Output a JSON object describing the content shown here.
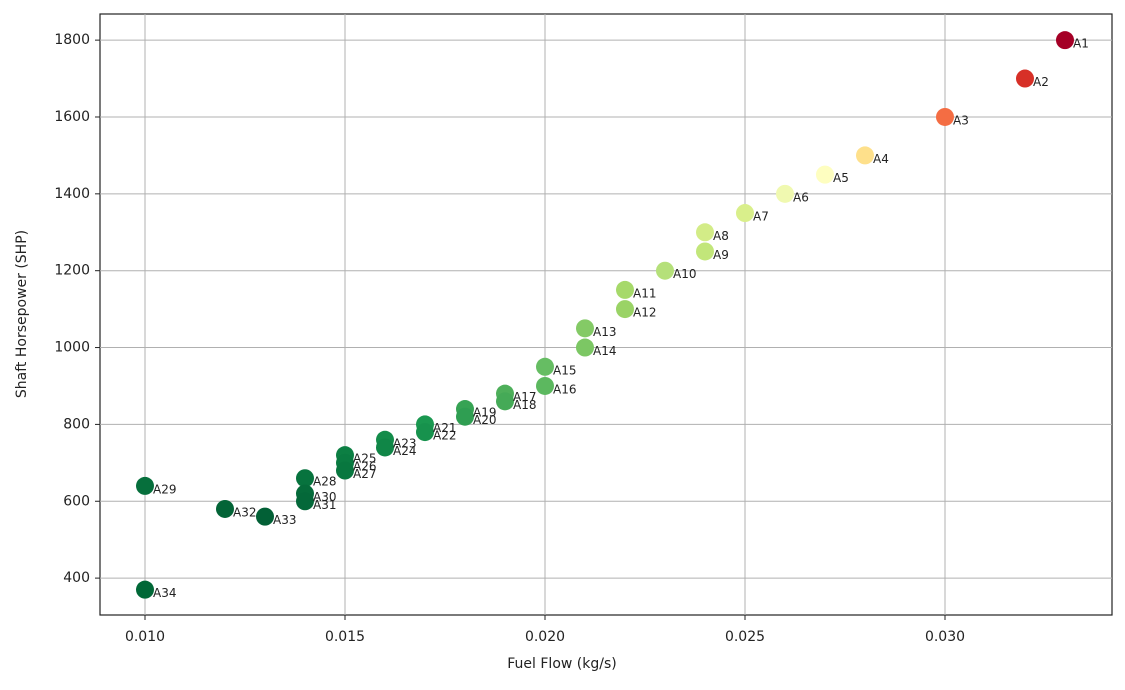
{
  "chart_data": {
    "type": "scatter",
    "xlabel": "Fuel Flow (kg/s)",
    "ylabel": "Shaft Horsepower (SHP)",
    "labels": [
      "A1",
      "A2",
      "A3",
      "A4",
      "A5",
      "A6",
      "A7",
      "A8",
      "A9",
      "A10",
      "A11",
      "A12",
      "A13",
      "A14",
      "A15",
      "A16",
      "A17",
      "A18",
      "A19",
      "A20",
      "A21",
      "A22",
      "A23",
      "A24",
      "A25",
      "A26",
      "A27",
      "A28",
      "A29",
      "A30",
      "A31",
      "A32",
      "A33",
      "A34"
    ],
    "x": [
      0.033,
      0.032,
      0.03,
      0.028,
      0.027,
      0.026,
      0.025,
      0.024,
      0.024,
      0.023,
      0.022,
      0.022,
      0.021,
      0.021,
      0.02,
      0.02,
      0.019,
      0.019,
      0.018,
      0.018,
      0.017,
      0.017,
      0.016,
      0.016,
      0.015,
      0.015,
      0.015,
      0.014,
      0.01,
      0.014,
      0.014,
      0.012,
      0.013,
      0.01
    ],
    "y": [
      1800,
      1700,
      1600,
      1500,
      1450,
      1400,
      1350,
      1300,
      1250,
      1200,
      1150,
      1100,
      1050,
      1000,
      950,
      900,
      880,
      860,
      840,
      820,
      800,
      780,
      760,
      740,
      720,
      700,
      680,
      660,
      640,
      620,
      600,
      580,
      560,
      370
    ],
    "colors": [
      "#a50026",
      "#d73027",
      "#f46d43",
      "#fee08b",
      "#fefec0",
      "#f0f9b0",
      "#d9ef8b",
      "#d3ec87",
      "#c2e67a",
      "#b5e07a",
      "#a6d96a",
      "#9ad366",
      "#84ca66",
      "#7cc764",
      "#66bd63",
      "#5cb85f",
      "#4eaf5a",
      "#45aa57",
      "#36a354",
      "#2f9e52",
      "#1a9850",
      "#17924d",
      "#138c4a",
      "#108647",
      "#0c7f43",
      "#0a7b41",
      "#08773f",
      "#07733e",
      "#066f3c",
      "#056b3a",
      "#046839",
      "#036437",
      "#026036",
      "#006837"
    ],
    "xlim": [
      0.008875,
      0.034175
    ],
    "ylim": [
      304,
      1868
    ],
    "xticks": [
      {
        "value": 0.01,
        "label": "0.010"
      },
      {
        "value": 0.015,
        "label": "0.015"
      },
      {
        "value": 0.02,
        "label": "0.020"
      },
      {
        "value": 0.025,
        "label": "0.025"
      },
      {
        "value": 0.03,
        "label": "0.030"
      }
    ],
    "yticks": [
      400,
      600,
      800,
      1000,
      1200,
      1400,
      1600,
      1800
    ],
    "grid": true
  }
}
